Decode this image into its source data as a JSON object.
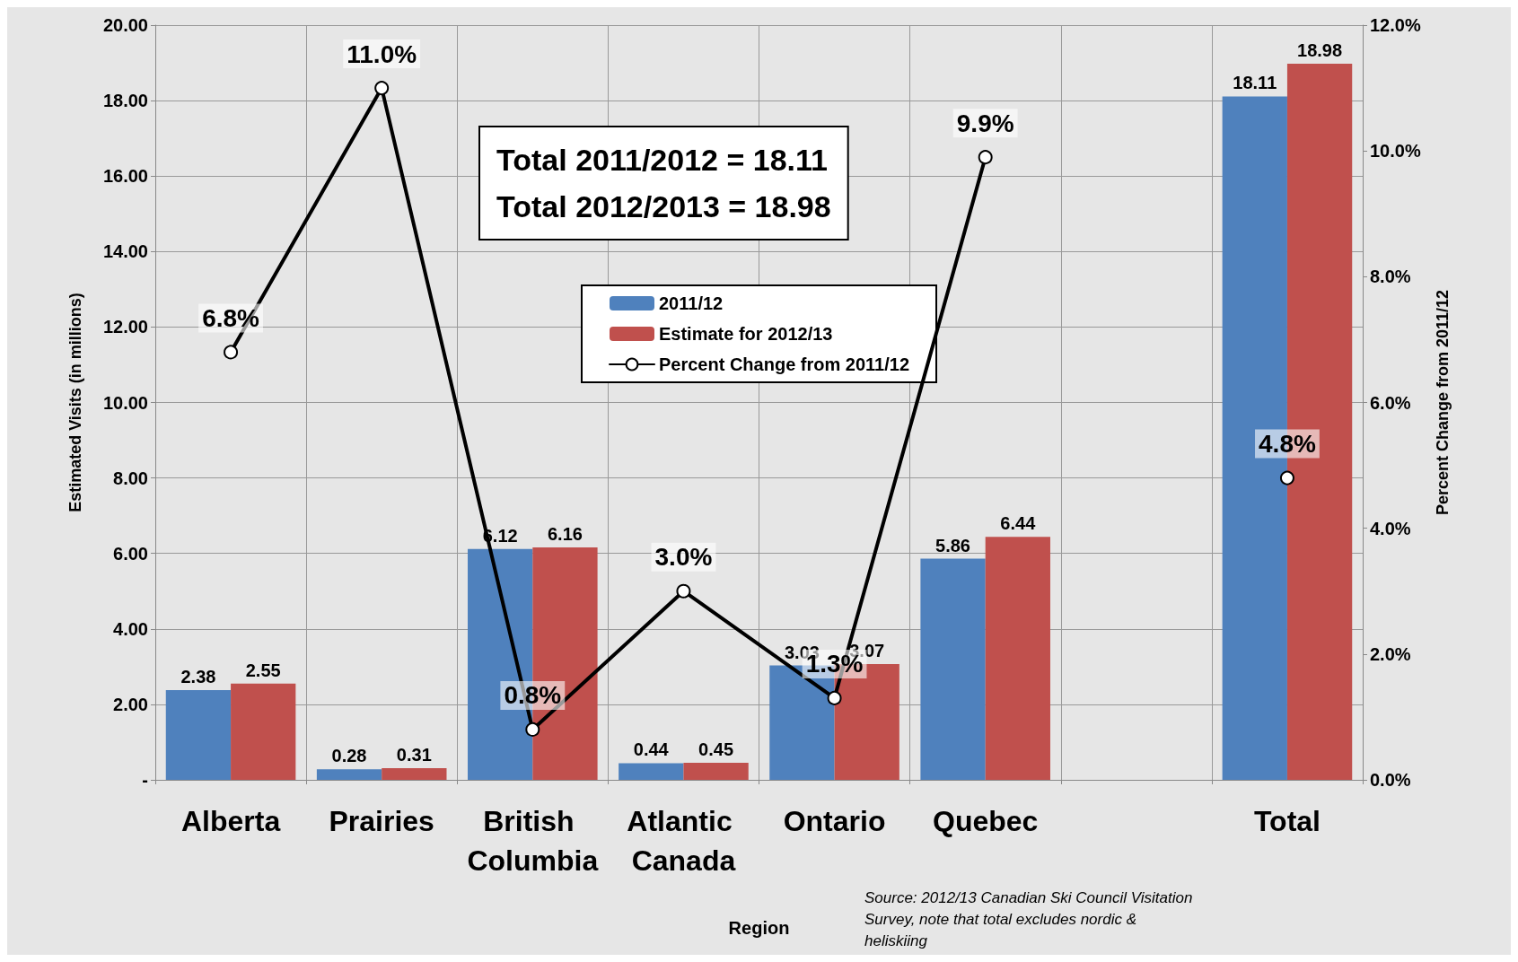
{
  "chart_data": {
    "type": "bar",
    "xlabel": "Region",
    "ylabel": "Estimated Visits (in millions)",
    "y2label": "Percent Change from 2011/12",
    "categories": [
      "Alberta",
      "Prairies",
      "British Columbia",
      "Atlantic Canada",
      "Ontario",
      "Quebec",
      null,
      "Total"
    ],
    "series": [
      {
        "name": "2011/12",
        "color": "#4f81bd",
        "values": [
          2.38,
          0.28,
          6.12,
          0.44,
          3.03,
          5.86,
          null,
          18.11
        ]
      },
      {
        "name": "Estimate for 2012/13",
        "color": "#c0504d",
        "values": [
          2.55,
          0.31,
          6.16,
          0.45,
          3.07,
          6.44,
          null,
          18.98
        ]
      },
      {
        "name": "Percent Change from 2011/12",
        "type": "line",
        "axis": "y2",
        "color": "#000000",
        "values": [
          6.8,
          11.0,
          0.8,
          3.0,
          1.3,
          9.9,
          null,
          4.8
        ],
        "value_labels": [
          "6.8%",
          "11.0%",
          "0.8%",
          "3.0%",
          "1.3%",
          "9.9%",
          null,
          "4.8%"
        ]
      }
    ],
    "data_labels": true,
    "marker": "circle",
    "line_style": "solid",
    "grid": true,
    "legend": "top",
    "ylim": [
      0,
      20
    ],
    "yticks": [
      {
        "value": 0,
        "label": "-"
      },
      {
        "value": 2,
        "label": "2.00"
      },
      {
        "value": 4,
        "label": "4.00"
      },
      {
        "value": 6,
        "label": "6.00"
      },
      {
        "value": 8,
        "label": "8.00"
      },
      {
        "value": 10,
        "label": "10.00"
      },
      {
        "value": 12,
        "label": "12.00"
      },
      {
        "value": 14,
        "label": "14.00"
      },
      {
        "value": 16,
        "label": "16.00"
      },
      {
        "value": 18,
        "label": "18.00"
      },
      {
        "value": 20,
        "label": "20.00"
      }
    ],
    "y2lim": [
      0,
      12
    ],
    "y2ticks": [
      {
        "value": 0,
        "label": "0.0%"
      },
      {
        "value": 2,
        "label": "2.0%"
      },
      {
        "value": 4,
        "label": "4.0%"
      },
      {
        "value": 6,
        "label": "6.0%"
      },
      {
        "value": 8,
        "label": "8.0%"
      },
      {
        "value": 10,
        "label": "10.0%"
      },
      {
        "value": 12,
        "label": "12.0%"
      }
    ],
    "annotations": [
      "Total 2011/2012 = 18.11",
      "Total 2012/2013 = 18.98",
      "Source: 2012/13 Canadian Ski Council Visitation Survey, note that total excludes nordic & heliskiing"
    ]
  }
}
